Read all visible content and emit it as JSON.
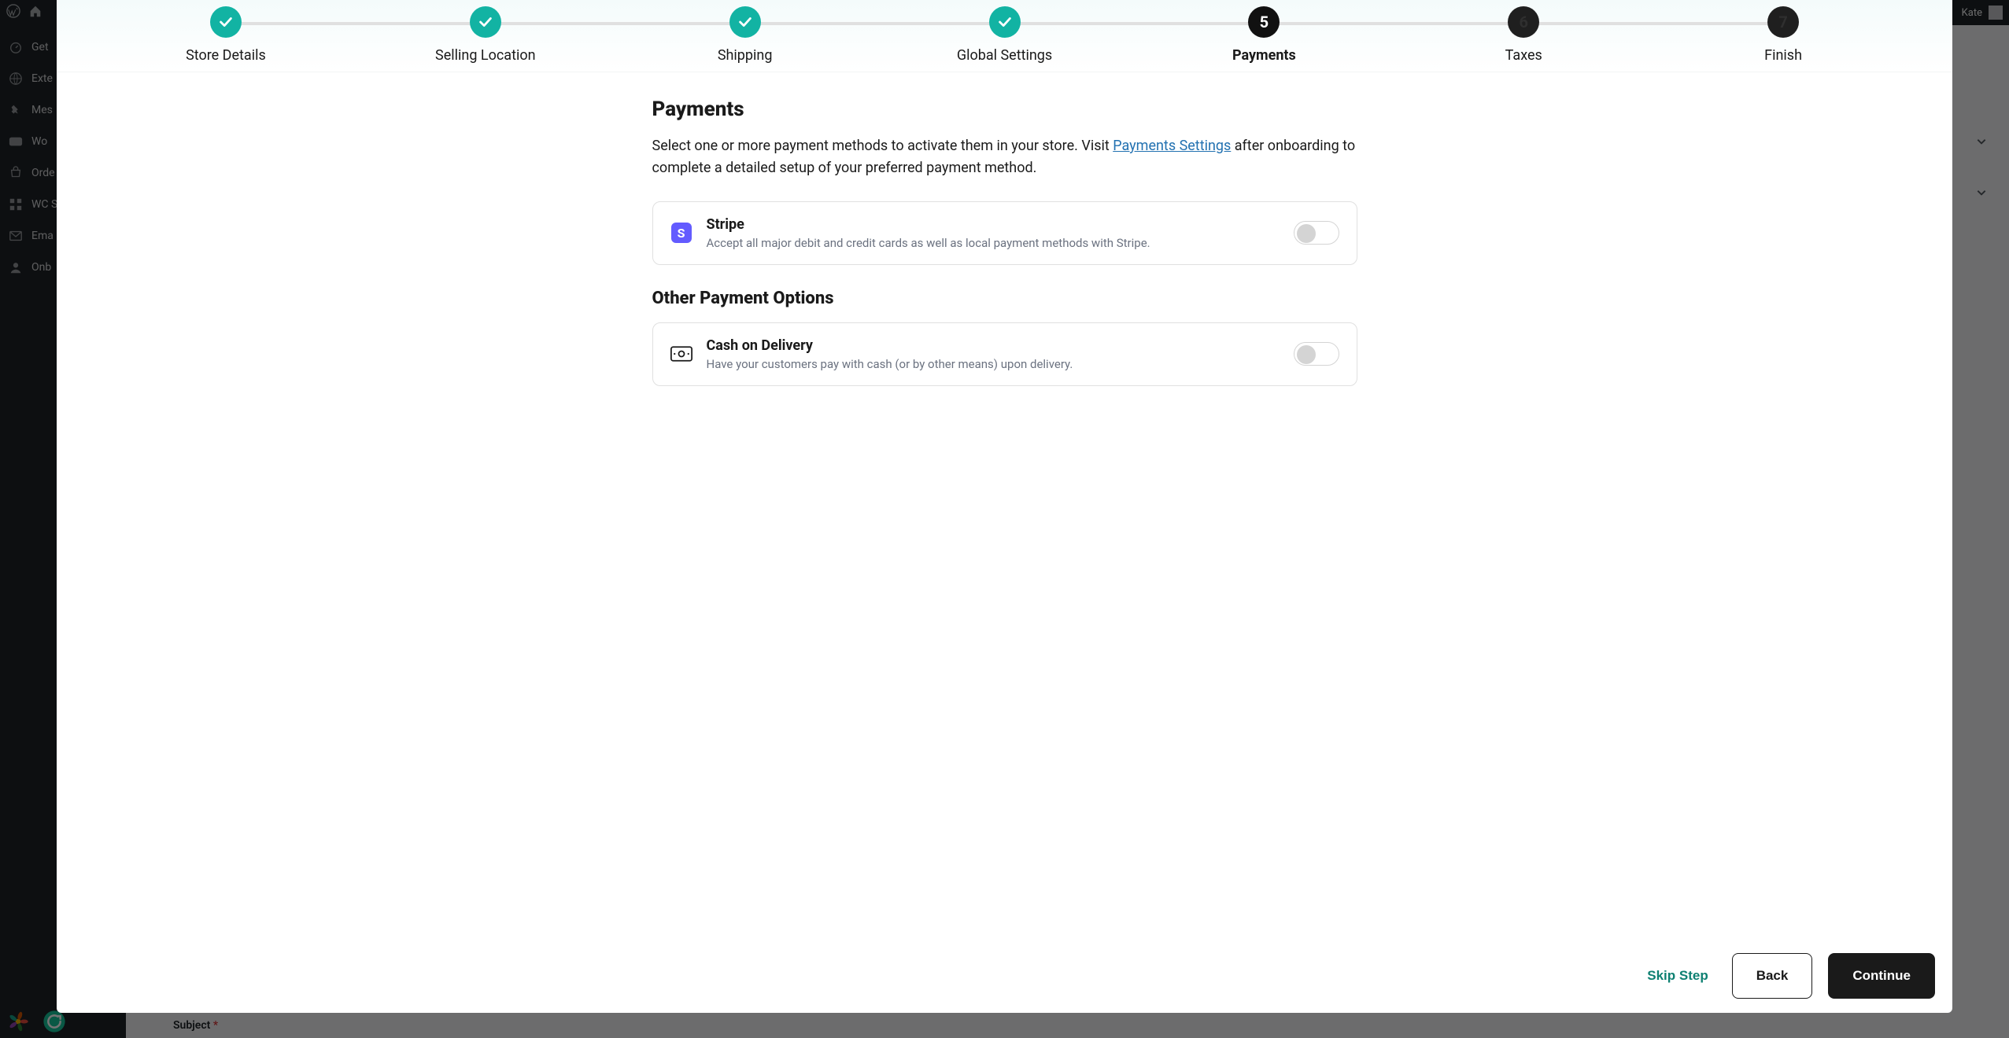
{
  "colors": {
    "completed": "#12b3a3",
    "current": "#111111",
    "pending": "#1f1f1f",
    "stepper_line": "#e0e0e0",
    "card_border": "#e0e0e0",
    "link": "#2271b1",
    "stripe": "#635bff",
    "teal_link": "#0e8072",
    "modal_bg": "#ffffff",
    "backdrop": "#1a1a1a"
  },
  "wp_admin": {
    "user_greeting": "Kate",
    "sidebar": [
      {
        "icon": "gauge",
        "label": "Get"
      },
      {
        "icon": "globe",
        "label": "Exte"
      },
      {
        "icon": "pin",
        "label": "Mes"
      },
      {
        "icon": "woo",
        "label": "Wo"
      },
      {
        "icon": "orders",
        "label": "Orde"
      },
      {
        "icon": "wc",
        "label": "WC Setti"
      },
      {
        "icon": "mail",
        "label": "Ema"
      },
      {
        "icon": "user",
        "label": "Onb"
      }
    ],
    "subject_label": "Subject",
    "required_marker": "*"
  },
  "wizard": {
    "steps": [
      {
        "label": "Store Details",
        "state": "completed"
      },
      {
        "label": "Selling Location",
        "state": "completed"
      },
      {
        "label": "Shipping",
        "state": "completed"
      },
      {
        "label": "Global Settings",
        "state": "completed"
      },
      {
        "label": "Payments",
        "state": "current",
        "number": "5"
      },
      {
        "label": "Taxes",
        "state": "pending",
        "number": "6"
      },
      {
        "label": "Finish",
        "state": "pending",
        "number": "7"
      }
    ],
    "page_title": "Payments",
    "lead_text_pre": "Select one or more payment methods to activate them in your store. Visit ",
    "lead_link_text": "Payments Settings",
    "lead_text_post": " after onboarding to complete a detailed setup of your preferred payment method.",
    "primary_methods": [
      {
        "id": "stripe",
        "name": "Stripe",
        "desc": "Accept all major debit and credit cards as well as local payment methods with Stripe.",
        "enabled": false
      }
    ],
    "other_heading": "Other Payment Options",
    "other_methods": [
      {
        "id": "cod",
        "name": "Cash on Delivery",
        "desc": "Have your customers pay with cash (or by other means) upon delivery.",
        "enabled": false
      }
    ],
    "footer": {
      "skip": "Skip Step",
      "back": "Back",
      "continue": "Continue"
    }
  }
}
